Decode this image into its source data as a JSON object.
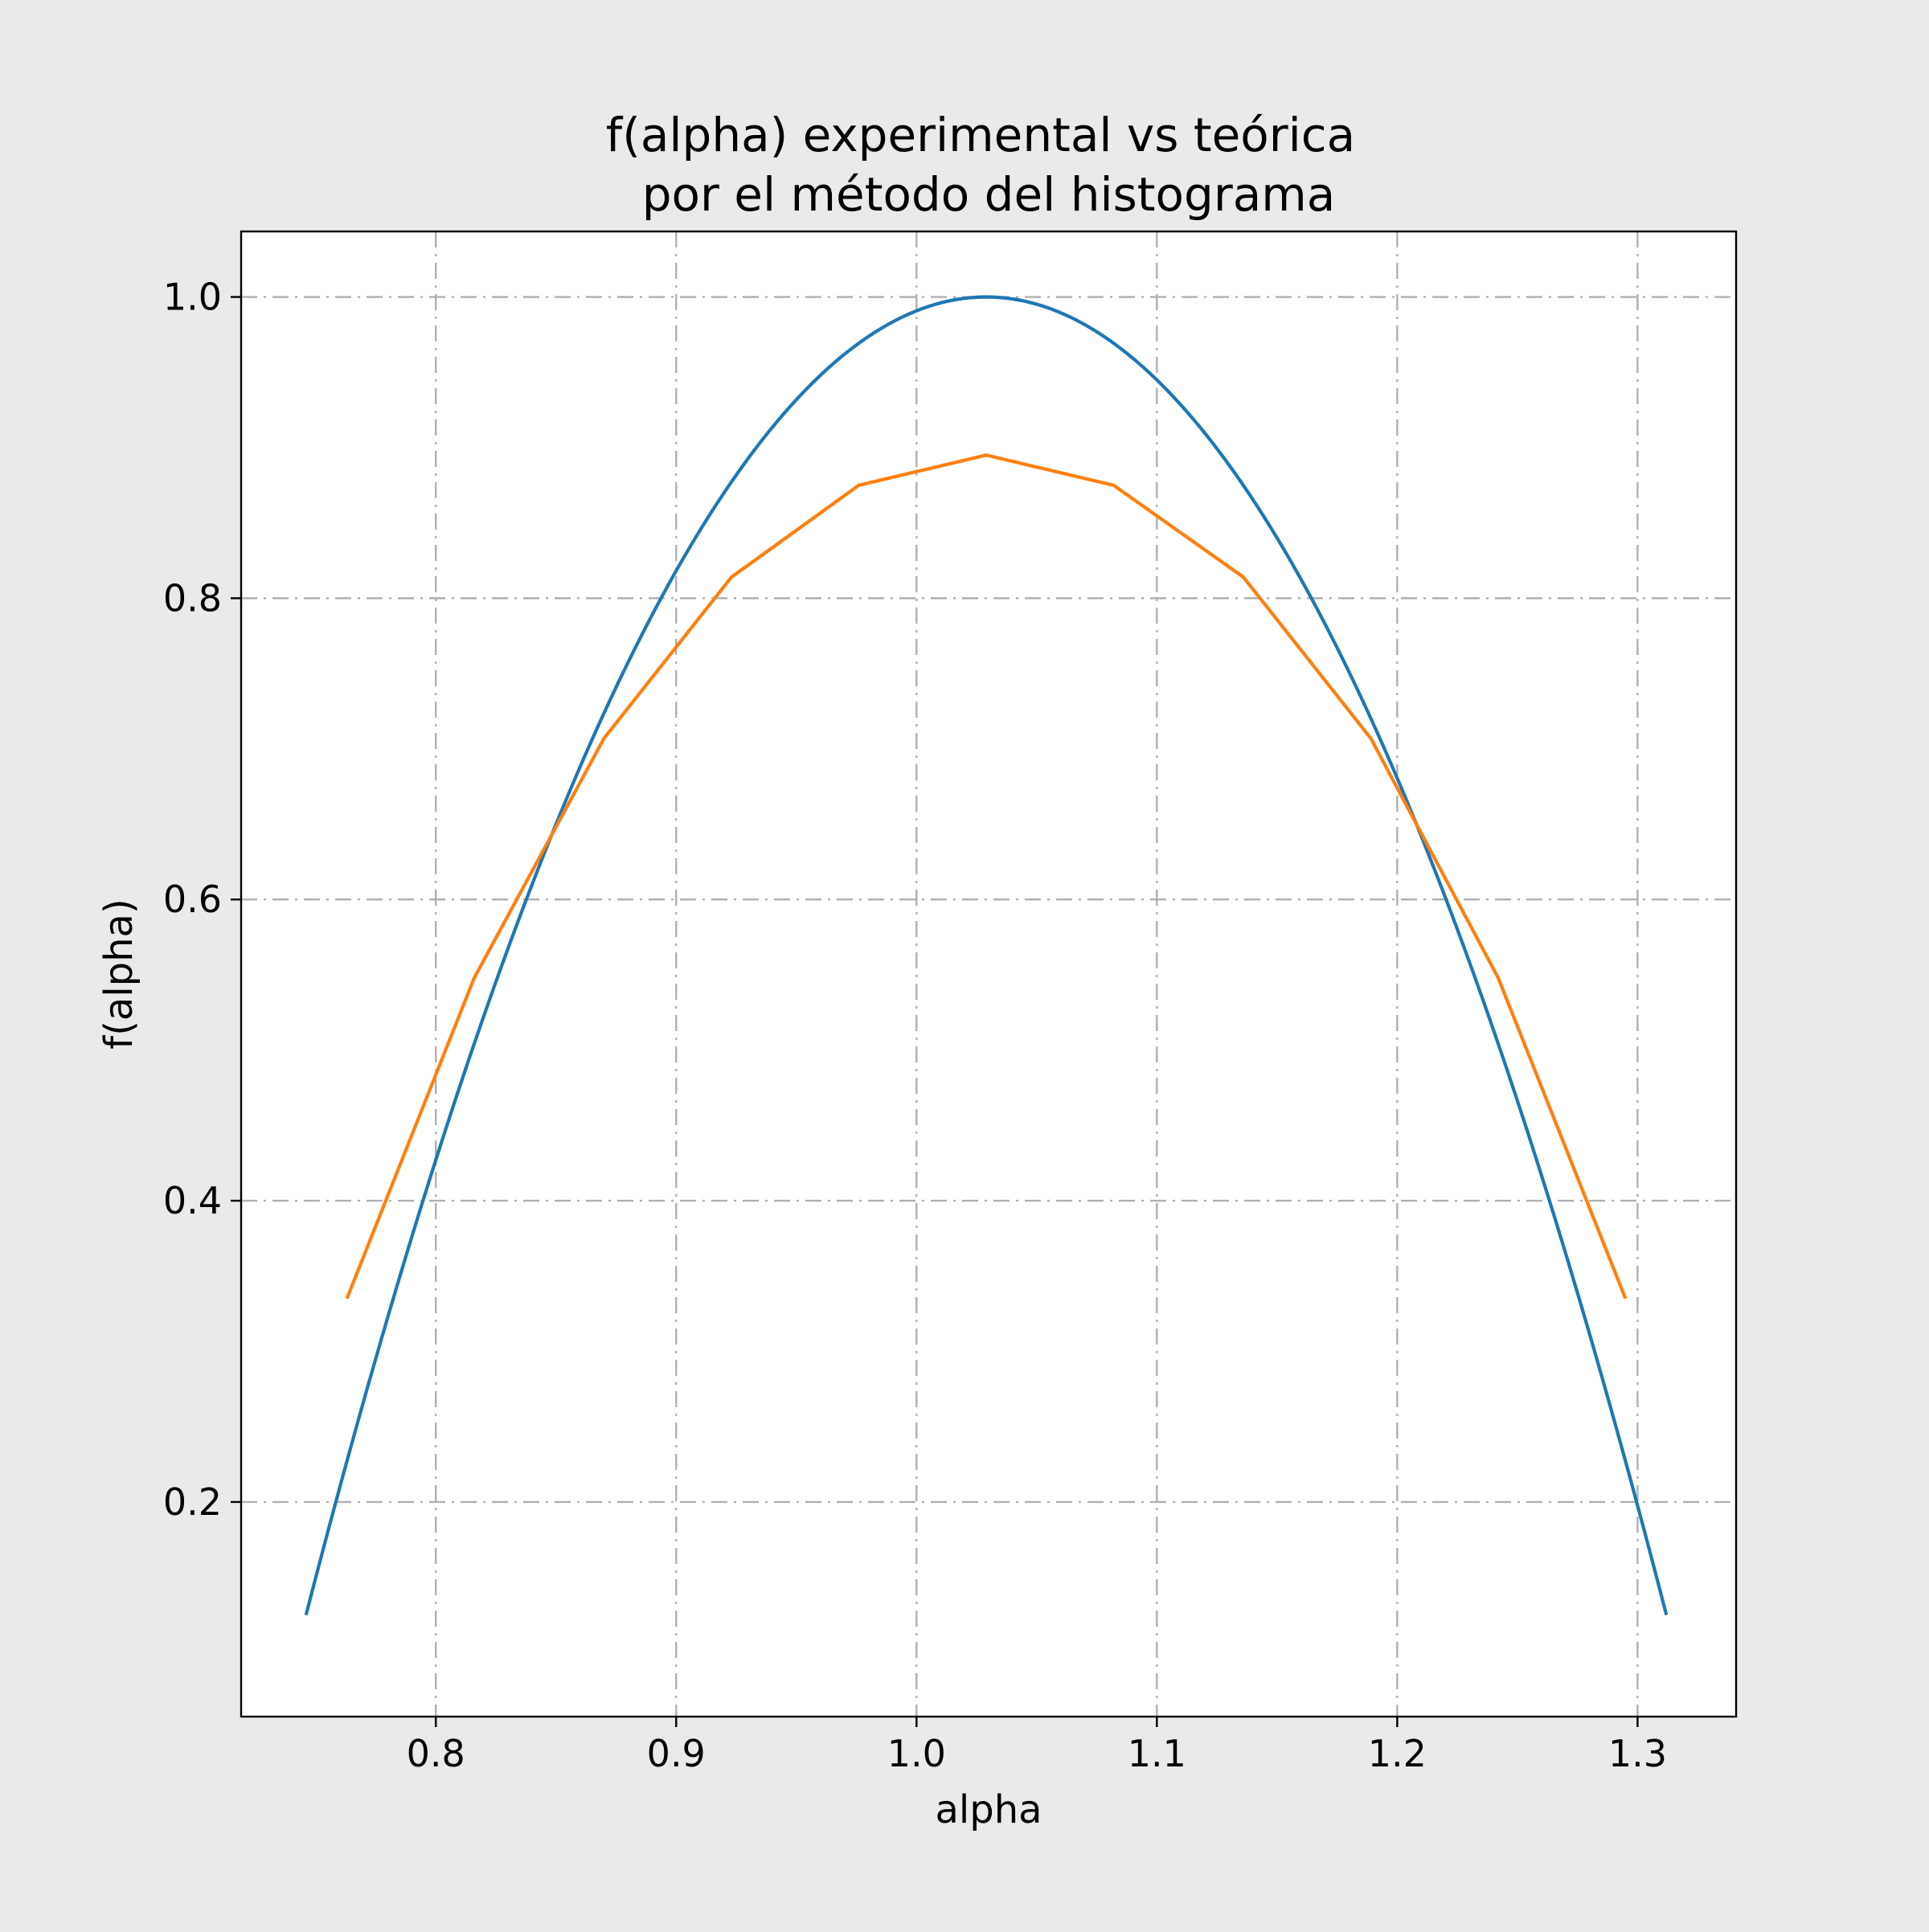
{
  "chart_data": {
    "type": "line",
    "title_line1": "f(alpha) experimental vs teórica",
    "title_line2": "por el método del histograma",
    "xlabel": "alpha",
    "ylabel": "f(alpha)",
    "xlim": [
      0.719,
      1.341
    ],
    "ylim": [
      0.0575,
      1.0435
    ],
    "xticks": [
      0.8,
      0.9,
      1.0,
      1.1,
      1.2,
      1.3
    ],
    "xtick_labels": [
      "0.8",
      "0.9",
      "1.0",
      "1.1",
      "1.2",
      "1.3"
    ],
    "yticks": [
      0.2,
      0.4,
      0.6,
      0.8,
      1.0
    ],
    "ytick_labels": [
      "0.2",
      "0.4",
      "0.6",
      "0.8",
      "1.0"
    ],
    "grid": true,
    "series": [
      {
        "color": "#1f77b4",
        "curve": "parabola",
        "x_range": [
          0.746,
          1.312
        ],
        "peak": [
          1.029,
          1.0
        ],
        "end_y": 0.125
      },
      {
        "color": "#ff7f0e",
        "x": [
          0.763,
          0.816,
          0.87,
          0.923,
          0.976,
          1.029,
          1.082,
          1.136,
          1.189,
          1.242,
          1.295
        ],
        "y": [
          0.335,
          0.548,
          0.707,
          0.814,
          0.875,
          0.895,
          0.875,
          0.814,
          0.707,
          0.548,
          0.335
        ]
      }
    ]
  }
}
